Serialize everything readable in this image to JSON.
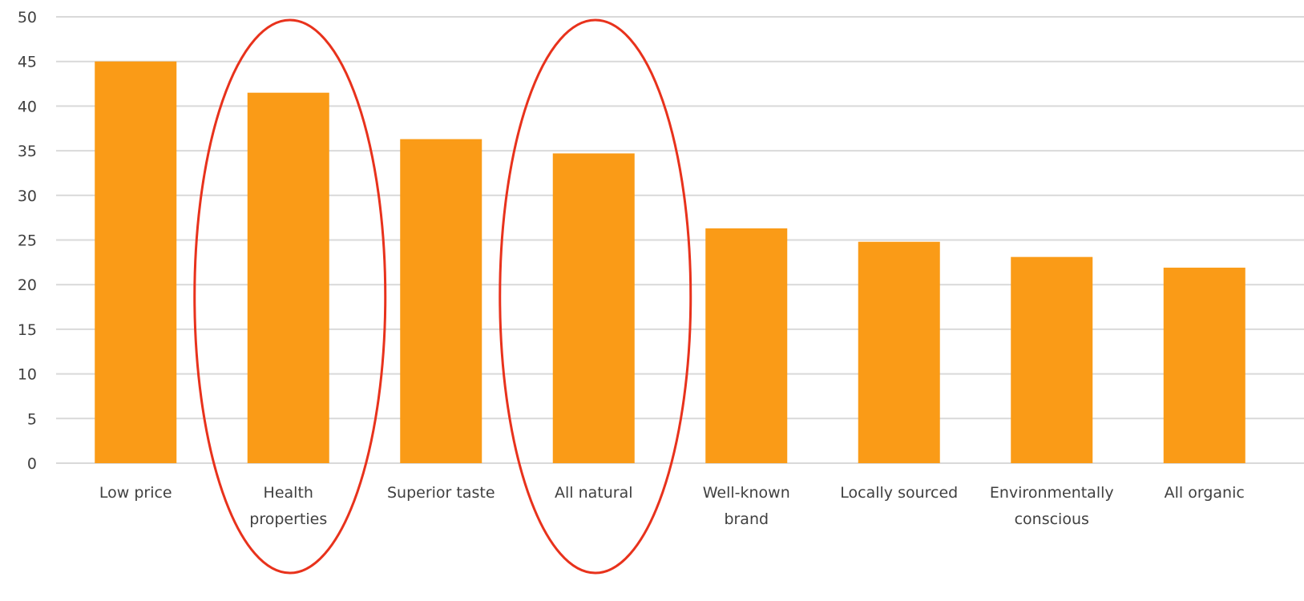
{
  "chart_data": {
    "type": "bar",
    "title": "",
    "xlabel": "",
    "ylabel": "",
    "categories": [
      [
        "Low price"
      ],
      [
        "Health",
        "properties"
      ],
      [
        "Superior taste"
      ],
      [
        "All natural"
      ],
      [
        "Well-known",
        "brand"
      ],
      [
        "Locally sourced"
      ],
      [
        "Environmentally",
        "conscious"
      ],
      [
        "All organic"
      ]
    ],
    "values": [
      45,
      41.5,
      36.3,
      34.7,
      26.3,
      24.8,
      23.1,
      21.9
    ],
    "ylim": [
      0,
      50
    ],
    "yticks": [
      0,
      5,
      10,
      15,
      20,
      25,
      30,
      35,
      40,
      45,
      50
    ],
    "grid": true,
    "bar_color": "#fa9b17",
    "grid_color": "#d9d9d9",
    "highlighted_categories": [
      1,
      3
    ],
    "highlight_color": "#e8321c"
  }
}
